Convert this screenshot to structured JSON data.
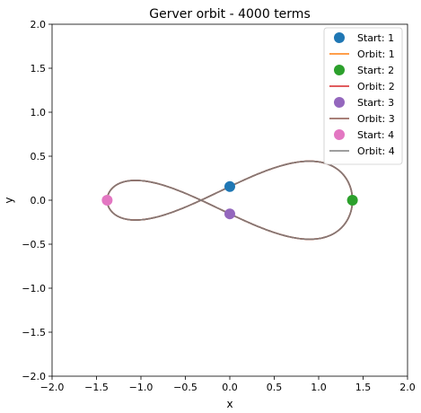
{
  "chart_data": {
    "type": "line",
    "title": "Gerver orbit - 4000 terms",
    "xlabel": "x",
    "ylabel": "y",
    "xlim": [
      -2.0,
      2.0
    ],
    "ylim": [
      -2.0,
      2.0
    ],
    "xticks": [
      "−2.0",
      "−1.5",
      "−1.0",
      "−0.5",
      "0.0",
      "0.5",
      "1.0",
      "1.5",
      "2.0"
    ],
    "yticks": [
      "−2.0",
      "−1.5",
      "−1.0",
      "−0.5",
      "0.0",
      "0.5",
      "1.0",
      "1.5",
      "2.0"
    ],
    "xtick_values": [
      -2.0,
      -1.5,
      -1.0,
      -0.5,
      0.0,
      0.5,
      1.0,
      1.5,
      2.0
    ],
    "ytick_values": [
      -2.0,
      -1.5,
      -1.0,
      -0.5,
      0.0,
      0.5,
      1.0,
      1.5,
      2.0
    ],
    "grid": false,
    "legend_position": "top-right",
    "orbit_shape": "figure-eight",
    "orbit_half_width": 1.38,
    "orbit_half_height": 0.33,
    "orbit_crossing_y": 0.155,
    "legend": [
      {
        "label": "Start: 1",
        "kind": "marker",
        "color": "#1f77b4"
      },
      {
        "label": "Orbit: 1",
        "kind": "line",
        "color": "#ff7f0e"
      },
      {
        "label": "Start: 2",
        "kind": "marker",
        "color": "#2ca02c"
      },
      {
        "label": "Orbit: 2",
        "kind": "line",
        "color": "#d62728"
      },
      {
        "label": "Start: 3",
        "kind": "marker",
        "color": "#9467bd"
      },
      {
        "label": "Orbit: 3",
        "kind": "line",
        "color": "#8c564b"
      },
      {
        "label": "Start: 4",
        "kind": "marker",
        "color": "#e377c2"
      },
      {
        "label": "Orbit: 4",
        "kind": "line",
        "color": "#7f7f7f"
      }
    ],
    "start_points": [
      {
        "name": "Start: 1",
        "x": 0.0,
        "y": 0.155,
        "color": "#1f77b4"
      },
      {
        "name": "Start: 2",
        "x": 1.38,
        "y": 0.0,
        "color": "#2ca02c"
      },
      {
        "name": "Start: 3",
        "x": 0.0,
        "y": -0.155,
        "color": "#9467bd"
      },
      {
        "name": "Start: 4",
        "x": -1.38,
        "y": 0.0,
        "color": "#e377c2"
      }
    ],
    "orbits": [
      {
        "name": "Orbit: 1",
        "color": "#ff7f0e"
      },
      {
        "name": "Orbit: 2",
        "color": "#d62728"
      },
      {
        "name": "Orbit: 3",
        "color": "#8c564b"
      },
      {
        "name": "Orbit: 4",
        "color": "#7f7f7f"
      }
    ]
  }
}
